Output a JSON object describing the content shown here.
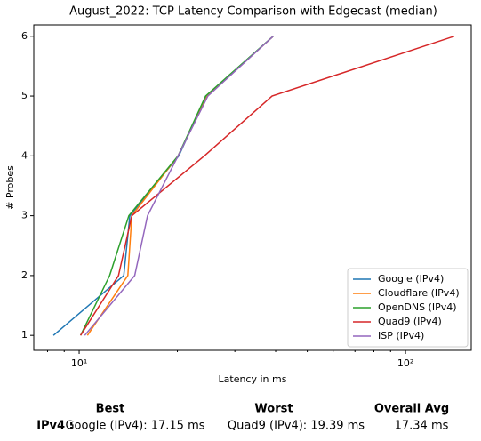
{
  "chart_data": {
    "type": "line",
    "title": "August_2022: TCP Latency Comparison with Edgecast (median)",
    "xlabel": "Latency in ms",
    "ylabel": "# Probes",
    "xscale": "log",
    "xlim": [
      7.26,
      159
    ],
    "ylim": [
      0.75,
      6.19
    ],
    "xticks": [
      {
        "value": 10,
        "label": "10¹"
      },
      {
        "value": 100,
        "label": "10²"
      }
    ],
    "xminorticks": [
      8,
      9,
      20,
      30,
      40,
      50,
      60,
      70,
      80,
      90
    ],
    "yticks": [
      1,
      2,
      3,
      4,
      5,
      6
    ],
    "legend": "lower right",
    "series": [
      {
        "name": "Google (IPv4)",
        "color": "#1f77b4",
        "x": [
          8.34,
          13.7,
          14.3,
          20.2,
          24.5,
          39.3
        ],
        "values": [
          1,
          2,
          3,
          4,
          5,
          6
        ]
      },
      {
        "name": "Cloudflare (IPv4)",
        "color": "#ff7f0e",
        "x": [
          10.6,
          14.1,
          14.5,
          20.1,
          24.7,
          39.3
        ],
        "values": [
          1,
          2,
          3,
          4,
          5,
          6
        ]
      },
      {
        "name": "OpenDNS (IPv4)",
        "color": "#2ca02c",
        "x": [
          10.1,
          12.4,
          14.2,
          20.1,
          24.4,
          39.3
        ],
        "values": [
          1,
          2,
          3,
          4,
          5,
          6
        ]
      },
      {
        "name": "Quad9 (IPv4)",
        "color": "#d62728",
        "x": [
          10.1,
          13.2,
          14.5,
          24.2,
          39.0,
          141
        ],
        "values": [
          1,
          2,
          3,
          4,
          5,
          6
        ]
      },
      {
        "name": "ISP (IPv4)",
        "color": "#9467bd",
        "x": [
          10.4,
          14.8,
          16.2,
          20.1,
          24.8,
          39.3
        ],
        "values": [
          1,
          2,
          3,
          4,
          5,
          6
        ]
      }
    ]
  },
  "footer": {
    "headers": [
      "Best",
      "Worst",
      "Overall Avg"
    ],
    "row_label": "IPv4 :",
    "cells": [
      "Google (IPv4): 17.15 ms",
      "Quad9 (IPv4): 19.39 ms",
      "17.34 ms"
    ]
  }
}
